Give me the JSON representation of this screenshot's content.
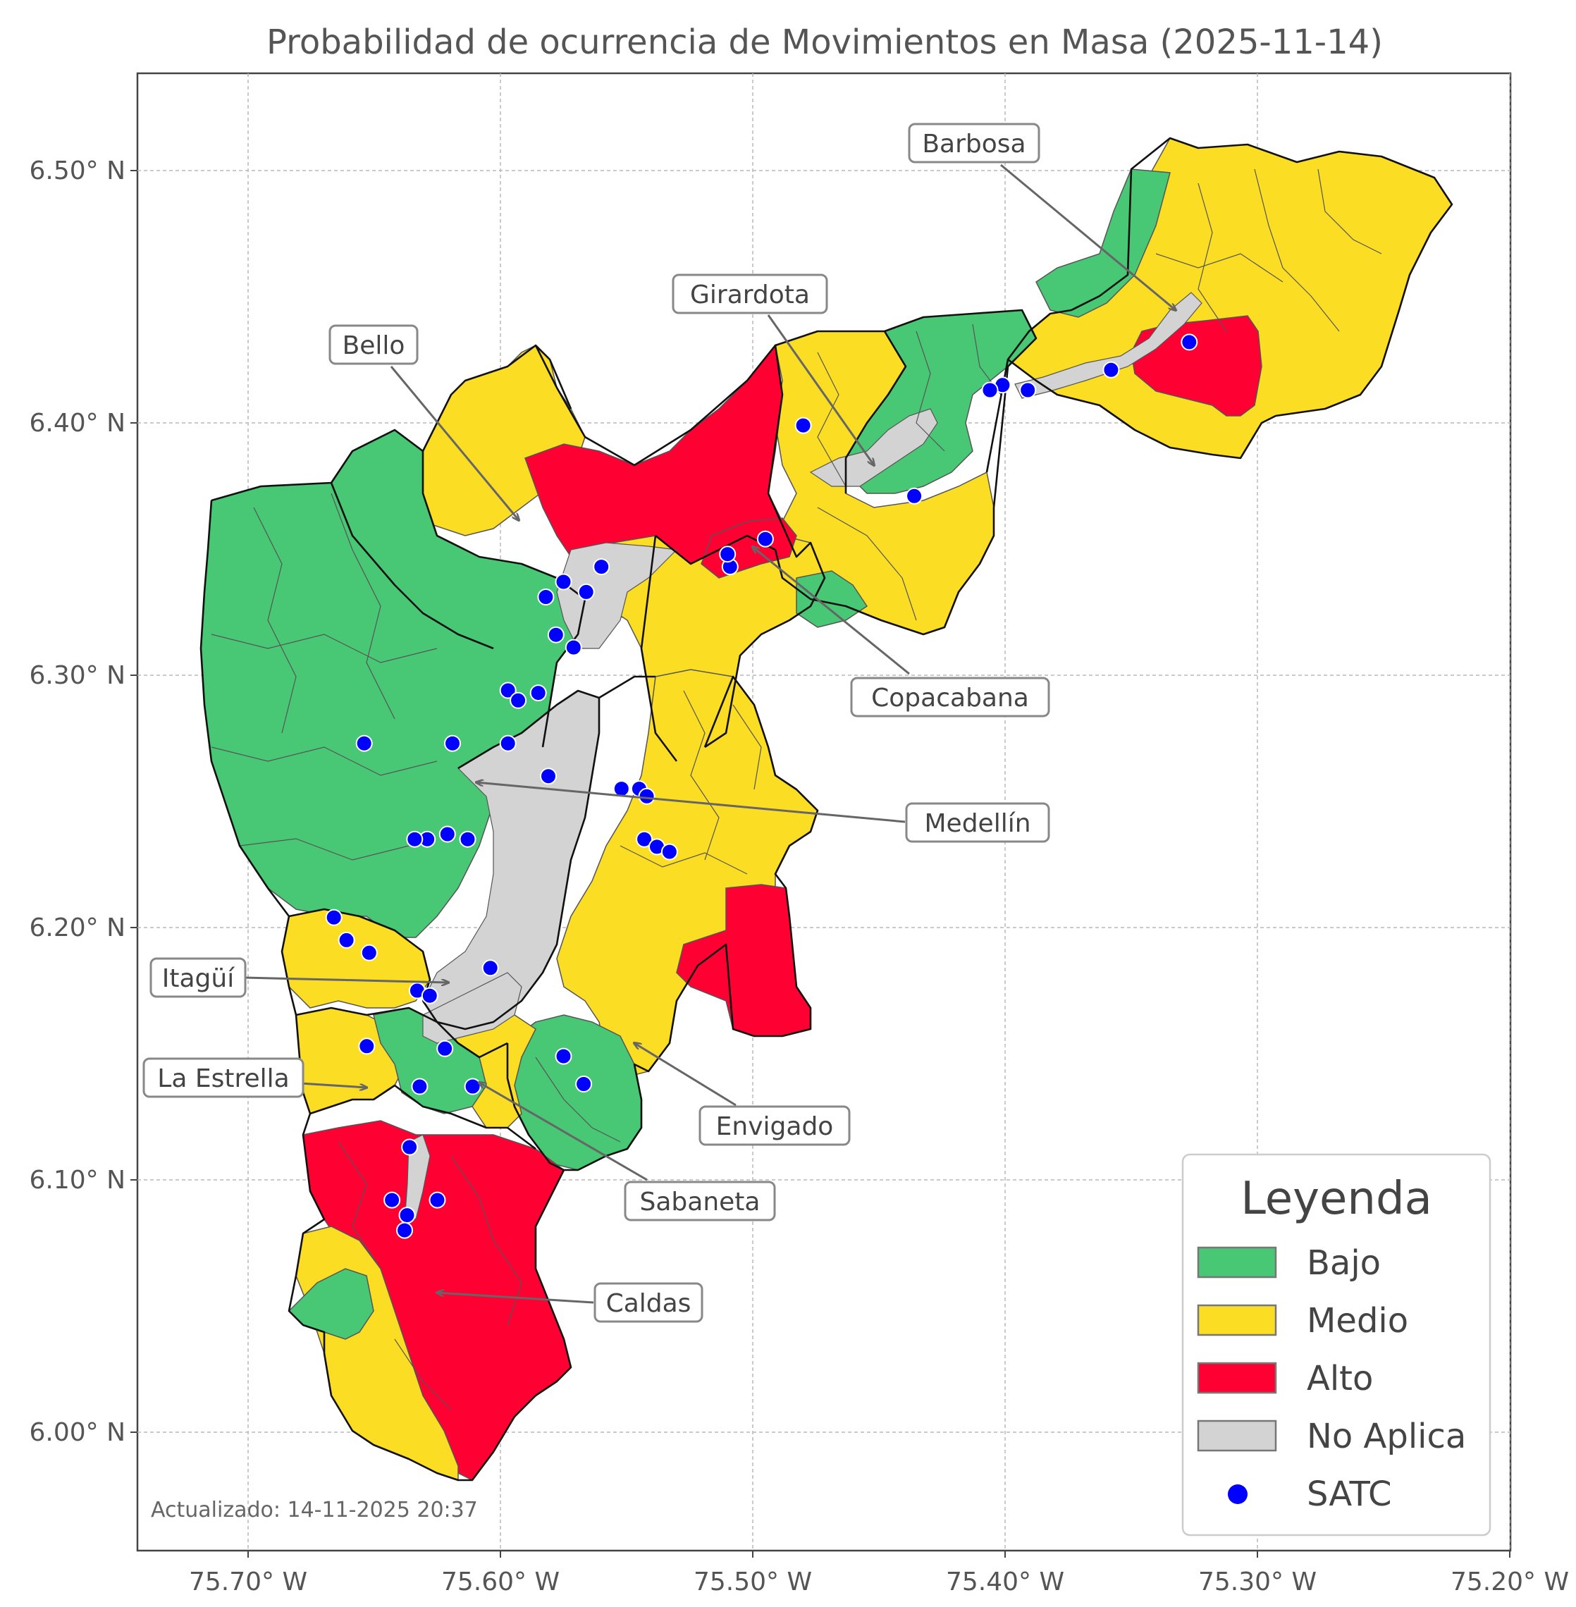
{
  "title": "Probabilidad de ocurrencia de Movimientos en Masa (2025-11-14)",
  "axes": {
    "x_ticks": [
      "75.70° W",
      "75.60° W",
      "75.50° W",
      "75.40° W",
      "75.30° W",
      "75.20° W"
    ],
    "y_ticks": [
      "6.50° N",
      "6.40° N",
      "6.30° N",
      "6.20° N",
      "6.10° N",
      "6.00° N"
    ]
  },
  "colors": {
    "bajo": "#48c774",
    "medio": "#fbdd24",
    "alto": "#ff0033",
    "no_aplica": "#d3d3d3",
    "satc": "#0000ff"
  },
  "municipalities": [
    {
      "name": "Barbosa"
    },
    {
      "name": "Girardota"
    },
    {
      "name": "Bello"
    },
    {
      "name": "Copacabana"
    },
    {
      "name": "Medellín"
    },
    {
      "name": "Itagüí"
    },
    {
      "name": "La Estrella"
    },
    {
      "name": "Envigado"
    },
    {
      "name": "Sabaneta"
    },
    {
      "name": "Caldas"
    }
  ],
  "legend": {
    "title": "Leyenda",
    "items": [
      {
        "label": "Bajo",
        "color": "#48c774",
        "kind": "patch"
      },
      {
        "label": "Medio",
        "color": "#fbdd24",
        "kind": "patch"
      },
      {
        "label": "Alto",
        "color": "#ff0033",
        "kind": "patch"
      },
      {
        "label": "No Aplica",
        "color": "#d3d3d3",
        "kind": "patch"
      },
      {
        "label": "SATC",
        "color": "#0000ff",
        "kind": "dot"
      }
    ]
  },
  "stations": [
    [
      -75.327,
      6.432
    ],
    [
      -75.358,
      6.421
    ],
    [
      -75.391,
      6.413
    ],
    [
      -75.401,
      6.415
    ],
    [
      -75.406,
      6.413
    ],
    [
      -75.48,
      6.399
    ],
    [
      -75.436,
      6.371
    ],
    [
      -75.495,
      6.354
    ],
    [
      -75.509,
      6.343
    ],
    [
      -75.51,
      6.348
    ],
    [
      -75.56,
      6.343
    ],
    [
      -75.566,
      6.333
    ],
    [
      -75.575,
      6.337
    ],
    [
      -75.582,
      6.331
    ],
    [
      -75.578,
      6.316
    ],
    [
      -75.571,
      6.311
    ],
    [
      -75.597,
      6.294
    ],
    [
      -75.593,
      6.29
    ],
    [
      -75.585,
      6.293
    ],
    [
      -75.597,
      6.273
    ],
    [
      -75.619,
      6.273
    ],
    [
      -75.654,
      6.273
    ],
    [
      -75.581,
      6.26
    ],
    [
      -75.552,
      6.255
    ],
    [
      -75.545,
      6.255
    ],
    [
      -75.542,
      6.252
    ],
    [
      -75.543,
      6.235
    ],
    [
      -75.538,
      6.232
    ],
    [
      -75.533,
      6.23
    ],
    [
      -75.621,
      6.237
    ],
    [
      -75.613,
      6.235
    ],
    [
      -75.629,
      6.235
    ],
    [
      -75.634,
      6.235
    ],
    [
      -75.666,
      6.204
    ],
    [
      -75.661,
      6.195
    ],
    [
      -75.652,
      6.19
    ],
    [
      -75.604,
      6.184
    ],
    [
      -75.633,
      6.175
    ],
    [
      -75.628,
      6.173
    ],
    [
      -75.653,
      6.153
    ],
    [
      -75.622,
      6.152
    ],
    [
      -75.575,
      6.149
    ],
    [
      -75.567,
      6.138
    ],
    [
      -75.611,
      6.137
    ],
    [
      -75.632,
      6.137
    ],
    [
      -75.636,
      6.113
    ],
    [
      -75.625,
      6.092
    ],
    [
      -75.643,
      6.092
    ],
    [
      -75.637,
      6.086
    ],
    [
      -75.638,
      6.08
    ]
  ],
  "updated": "Actualizado: 14-11-2025 20:37"
}
